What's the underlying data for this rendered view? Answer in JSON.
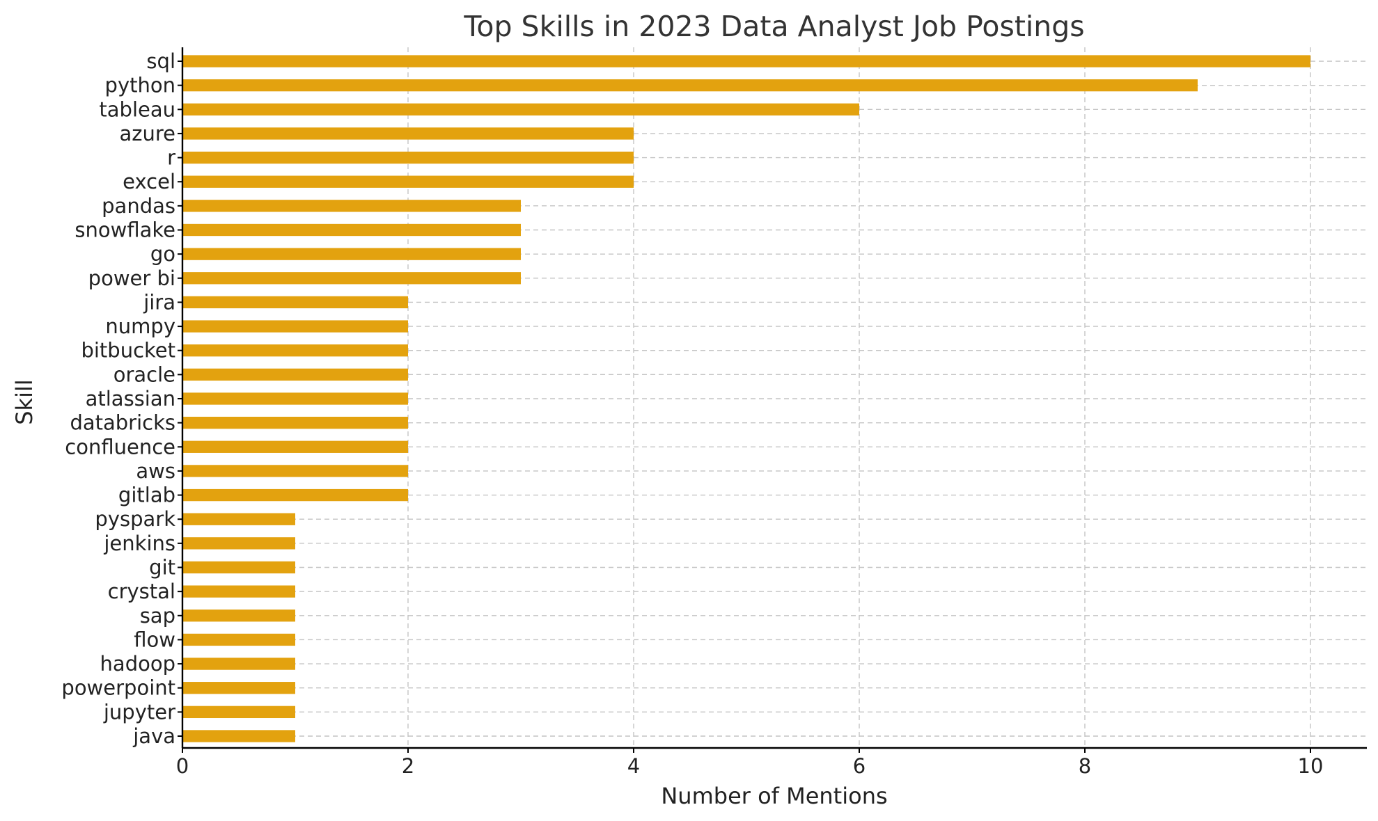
{
  "chart_data": {
    "type": "bar",
    "orientation": "horizontal",
    "title": "Top Skills in 2023 Data Analyst Job Postings",
    "xlabel": "Number of Mentions",
    "ylabel": "Skill",
    "categories": [
      "sql",
      "python",
      "tableau",
      "azure",
      "r",
      "excel",
      "pandas",
      "snowflake",
      "go",
      "power bi",
      "jira",
      "numpy",
      "bitbucket",
      "oracle",
      "atlassian",
      "databricks",
      "confluence",
      "aws",
      "gitlab",
      "pyspark",
      "jenkins",
      "git",
      "crystal",
      "sap",
      "flow",
      "hadoop",
      "powerpoint",
      "jupyter",
      "java"
    ],
    "values": [
      10,
      9,
      6,
      4,
      4,
      4,
      3,
      3,
      3,
      3,
      2,
      2,
      2,
      2,
      2,
      2,
      2,
      2,
      2,
      1,
      1,
      1,
      1,
      1,
      1,
      1,
      1,
      1,
      1
    ],
    "xlim": [
      0,
      10.5
    ],
    "xticks": [
      "0",
      "2",
      "4",
      "6",
      "8",
      "10"
    ],
    "grid": true,
    "bar_color": "#E3A20F"
  }
}
